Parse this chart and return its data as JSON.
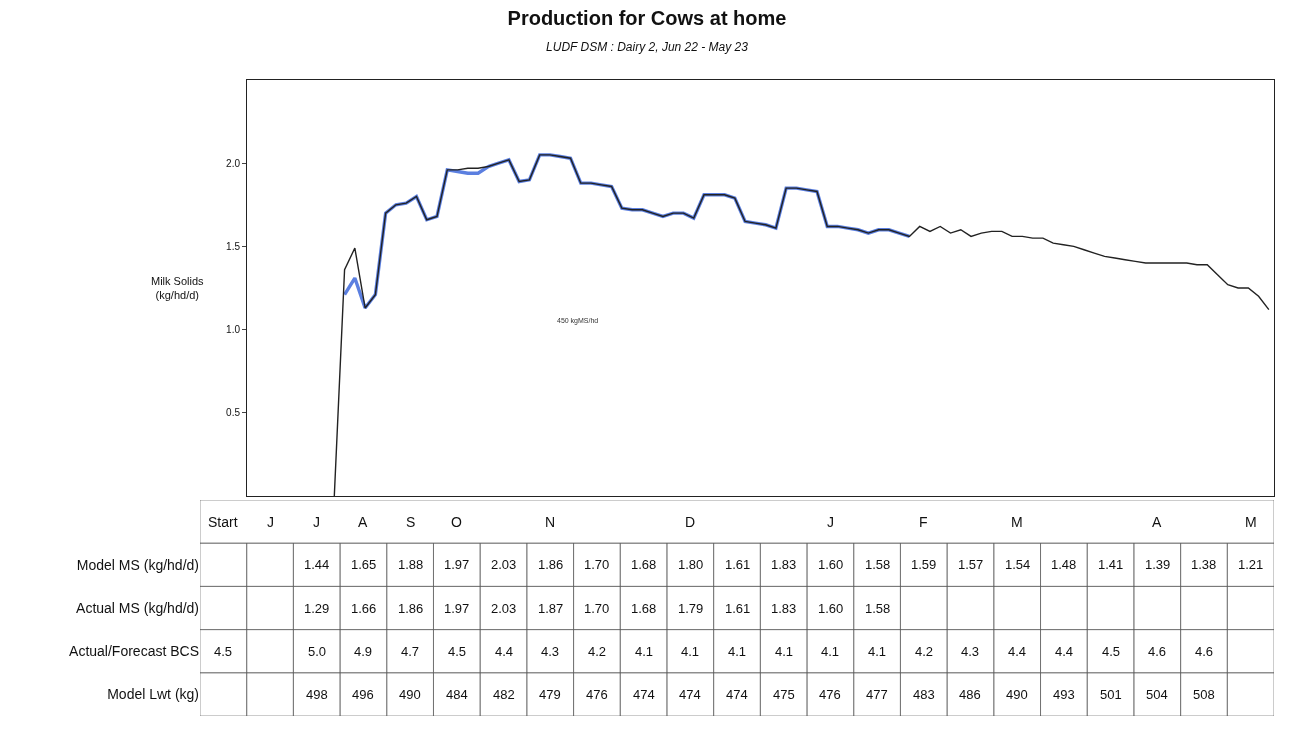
{
  "chart_data": [
    {
      "type": "line",
      "title": "Production for Cows at home",
      "subtitle": "LUDF DSM : Dairy 2, Jun 22 - May 23",
      "ylabel": "Milk Solids (kg/hd/d)",
      "annotations": [
        "450 kgMS/hd"
      ],
      "categories": [
        null,
        null,
        null,
        null,
        null,
        null,
        null,
        null,
        null,
        null,
        null,
        null,
        null,
        null,
        null,
        null,
        null,
        null,
        null,
        null,
        null,
        null,
        null,
        null,
        null,
        null,
        null,
        null,
        null,
        null,
        null,
        null,
        null,
        null,
        null,
        null,
        null,
        null,
        null,
        null,
        null,
        null,
        null,
        null,
        null,
        null,
        null,
        null,
        null,
        null,
        null,
        null,
        null,
        null,
        null,
        null,
        null,
        null,
        null,
        null,
        null,
        null,
        null,
        null,
        null,
        null,
        null,
        null,
        null,
        null,
        null,
        null,
        null,
        null,
        null,
        null,
        null,
        null,
        null,
        null,
        null,
        null,
        null,
        null,
        null,
        null,
        null,
        null,
        null,
        null,
        null,
        null,
        null,
        null,
        null,
        null,
        null,
        null,
        null,
        null
      ],
      "ylim": [
        0,
        2.5
      ],
      "yticks": [
        {
          "value": 0.5,
          "label": "0.5"
        },
        {
          "value": 1,
          "label": "1.0"
        },
        {
          "value": 1.5,
          "label": "1.5"
        },
        {
          "value": 2,
          "label": "2.0"
        }
      ],
      "tick_labels": "y",
      "grid": false,
      "series": [
        {
          "color": "#5b7fe0",
          "values": [
            null,
            null,
            null,
            null,
            null,
            null,
            null,
            null,
            null,
            1.21,
            1.31,
            1.13,
            1.21,
            1.7,
            1.75,
            1.76,
            1.8,
            1.66,
            1.68,
            1.96,
            1.95,
            1.94,
            1.94,
            1.98,
            2.0,
            2.02,
            1.89,
            1.9,
            2.05,
            2.05,
            2.04,
            2.03,
            1.88,
            1.88,
            1.87,
            1.86,
            1.73,
            1.72,
            1.72,
            1.7,
            1.68,
            1.7,
            1.7,
            1.67,
            1.81,
            1.81,
            1.81,
            1.79,
            1.65,
            1.64,
            1.63,
            1.61,
            1.85,
            1.85,
            1.84,
            1.83,
            1.62,
            1.62,
            1.61,
            1.6,
            1.58,
            1.6,
            1.6,
            1.58,
            1.56,
            null,
            null,
            null,
            null,
            null,
            null,
            null,
            null,
            null,
            null,
            null,
            null,
            null,
            null,
            null,
            null,
            null,
            null,
            null,
            null,
            null,
            null,
            null,
            null,
            null,
            null,
            null,
            null,
            null,
            null,
            null,
            null,
            null,
            null,
            null
          ]
        },
        {
          "color": "#222222",
          "values": [
            null,
            null,
            null,
            null,
            null,
            null,
            null,
            null,
            0,
            1.36,
            1.49,
            1.13,
            1.21,
            1.7,
            1.75,
            1.76,
            1.8,
            1.66,
            1.68,
            1.96,
            1.96,
            1.97,
            1.97,
            1.98,
            2.0,
            2.02,
            1.89,
            1.9,
            2.05,
            2.05,
            2.04,
            2.03,
            1.88,
            1.88,
            1.87,
            1.86,
            1.73,
            1.72,
            1.72,
            1.7,
            1.68,
            1.7,
            1.7,
            1.67,
            1.81,
            1.81,
            1.81,
            1.79,
            1.65,
            1.64,
            1.63,
            1.61,
            1.85,
            1.85,
            1.84,
            1.83,
            1.62,
            1.62,
            1.61,
            1.6,
            1.58,
            1.6,
            1.6,
            1.58,
            1.56,
            1.62,
            1.59,
            1.62,
            1.58,
            1.6,
            1.56,
            1.58,
            1.59,
            1.59,
            1.56,
            1.56,
            1.55,
            1.55,
            1.52,
            1.51,
            1.5,
            1.48,
            1.46,
            1.44,
            1.43,
            1.42,
            1.41,
            1.4,
            1.4,
            1.4,
            1.4,
            1.4,
            1.39,
            1.39,
            1.33,
            1.27,
            1.25,
            1.25,
            1.2,
            1.12
          ]
        }
      ]
    },
    {
      "type": "heatmap",
      "categories": [
        "Start",
        "J",
        "J",
        "A",
        "S",
        "O",
        null,
        "N",
        null,
        null,
        "D",
        null,
        null,
        "J",
        null,
        "F",
        null,
        "M",
        null,
        null,
        "A",
        null,
        "M"
      ],
      "y_categories": [
        "Model MS (kg/hd/d)",
        "Actual MS (kg/hd/d)",
        "Actual/Forecast BCS",
        "Model Lwt (kg)"
      ],
      "cells": [
        [
          null,
          null,
          1.44,
          1.65,
          1.88,
          1.97,
          2.03,
          1.86,
          1.7,
          1.68,
          1.8,
          1.61,
          1.83,
          1.6,
          1.58,
          1.59,
          1.57,
          1.54,
          1.48,
          1.41,
          1.39,
          1.38,
          1.21
        ],
        [
          null,
          null,
          1.29,
          1.66,
          1.86,
          1.97,
          2.03,
          1.87,
          1.7,
          1.68,
          1.79,
          1.61,
          1.83,
          1.6,
          1.58,
          null,
          null,
          null,
          null,
          null,
          null,
          null,
          null
        ],
        [
          4.5,
          null,
          5.0,
          4.9,
          4.7,
          4.5,
          4.4,
          4.3,
          4.2,
          4.1,
          4.1,
          4.1,
          4.1,
          4.1,
          4.1,
          4.2,
          4.3,
          4.4,
          4.4,
          4.5,
          4.6,
          4.6,
          null
        ],
        [
          null,
          null,
          498,
          496,
          490,
          484,
          482,
          479,
          476,
          474,
          474,
          474,
          475,
          476,
          477,
          483,
          486,
          490,
          493,
          501,
          504,
          508,
          null
        ]
      ],
      "cell_labels": [
        [
          null,
          null,
          "1.44",
          "1.65",
          "1.88",
          "1.97",
          "2.03",
          "1.86",
          "1.70",
          "1.68",
          "1.80",
          "1.61",
          "1.83",
          "1.60",
          "1.58",
          "1.59",
          "1.57",
          "1.54",
          "1.48",
          "1.41",
          "1.39",
          "1.38",
          "1.21"
        ],
        [
          null,
          null,
          "1.29",
          "1.66",
          "1.86",
          "1.97",
          "2.03",
          "1.87",
          "1.70",
          "1.68",
          "1.79",
          "1.61",
          "1.83",
          "1.60",
          "1.58",
          null,
          null,
          null,
          null,
          null,
          null,
          null,
          null
        ],
        [
          "4.5",
          null,
          "5.0",
          "4.9",
          "4.7",
          "4.5",
          "4.4",
          "4.3",
          "4.2",
          "4.1",
          "4.1",
          "4.1",
          "4.1",
          "4.1",
          "4.1",
          "4.2",
          "4.3",
          "4.4",
          "4.4",
          "4.5",
          "4.6",
          "4.6",
          null
        ],
        [
          null,
          null,
          "498",
          "496",
          "490",
          "484",
          "482",
          "479",
          "476",
          "474",
          "474",
          "474",
          "475",
          "476",
          "477",
          "483",
          "486",
          "490",
          "493",
          "501",
          "504",
          "508",
          null
        ]
      ]
    }
  ]
}
